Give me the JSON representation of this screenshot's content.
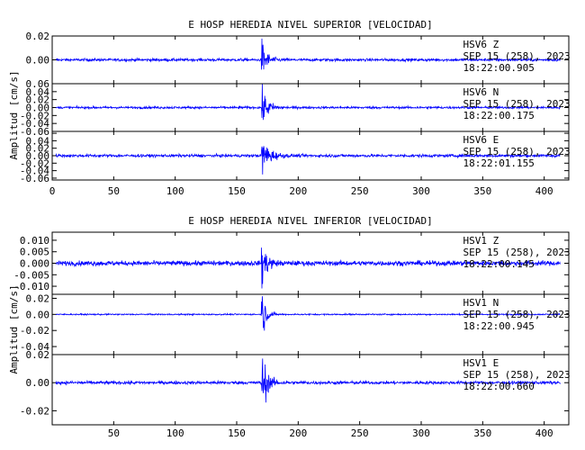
{
  "chart_data": [
    {
      "type": "line",
      "title": "E HOSP HEREDIA NIVEL SUPERIOR [VELOCIDAD]",
      "ylabel": "Amplitud [cm/s]",
      "xlabel": "",
      "xlim": [
        0,
        420
      ],
      "x_ticks": [
        0,
        50,
        100,
        150,
        200,
        250,
        300,
        350,
        400
      ],
      "color": "#0000ff",
      "event_time": 170,
      "panels": [
        {
          "station": "HSV6",
          "channel": "Z",
          "label": "HSV6  Z",
          "date": "SEP 15 (258), 2023",
          "time": "18:22:00.905",
          "ylim": [
            -0.02,
            0.02
          ],
          "y_ticks": [
            -0.02,
            0.0,
            0.02
          ],
          "y_tick_labels": [
            "",
            "0.00",
            "0.02"
          ],
          "noise_amp": 0.0012,
          "peak_amp": 0.02,
          "decay": 4
        },
        {
          "station": "HSV6",
          "channel": "N",
          "label": "HSV6  N",
          "date": "SEP 15 (258), 2023",
          "time": "18:22:00.175",
          "ylim": [
            -0.06,
            0.06
          ],
          "y_ticks": [
            -0.06,
            -0.04,
            -0.02,
            0.0,
            0.02,
            0.04,
            0.06
          ],
          "y_tick_labels": [
            "-0.06",
            "-0.04",
            "-0.02",
            "0.00",
            "0.02",
            "0.04",
            "0.06"
          ],
          "noise_amp": 0.003,
          "peak_amp": 0.055,
          "decay": 5
        },
        {
          "station": "HSV6",
          "channel": "E",
          "label": "HSV6  E",
          "date": "SEP 15 (258), 2023",
          "time": "18:22:01.155",
          "ylim": [
            -0.065,
            0.065
          ],
          "y_ticks": [
            -0.06,
            -0.04,
            -0.02,
            0.0,
            0.02,
            0.04,
            0.06
          ],
          "y_tick_labels": [
            "-0.06",
            "-0.04",
            "-0.02",
            "0.00",
            "0.02",
            "0.04",
            ""
          ],
          "noise_amp": 0.004,
          "peak_amp": 0.06,
          "decay": 6
        }
      ],
      "x_tick_labels": [
        "0",
        "50",
        "100",
        "150",
        "200",
        "250",
        "300",
        "350",
        "400"
      ]
    },
    {
      "type": "line",
      "title": "E HOSP HEREDIA NIVEL INFERIOR [VELOCIDAD]",
      "ylabel": "Amplitud [cm/s]",
      "xlabel": "",
      "xlim": [
        0,
        420
      ],
      "x_ticks": [
        0,
        50,
        100,
        150,
        200,
        250,
        300,
        350,
        400
      ],
      "color": "#0000ff",
      "event_time": 170,
      "panels": [
        {
          "station": "HSV1",
          "channel": "Z",
          "label": "HSV1  Z",
          "date": "SEP 15 (258), 2023",
          "time": "18:22:00.145",
          "ylim": [
            -0.0135,
            0.0135
          ],
          "y_ticks": [
            -0.01,
            -0.005,
            0.0,
            0.005,
            0.01
          ],
          "y_tick_labels": [
            "-0.010",
            "-0.005",
            "0.000",
            "0.005",
            "0.010"
          ],
          "noise_amp": 0.0011,
          "peak_amp": 0.0125,
          "decay": 4
        },
        {
          "station": "HSV1",
          "channel": "N",
          "label": "HSV1  N",
          "date": "SEP 15 (258), 2023",
          "time": "18:22:00.945",
          "ylim": [
            -0.05,
            0.025
          ],
          "y_ticks": [
            -0.04,
            -0.02,
            0.0,
            0.02
          ],
          "y_tick_labels": [
            "-0.04",
            "-0.02",
            "0.00",
            "0.02"
          ],
          "noise_amp": 0.0009,
          "peak_amp": 0.045,
          "decay": 3
        },
        {
          "station": "HSV1",
          "channel": "E",
          "label": "HSV1  E",
          "date": "SEP 15 (258), 2023",
          "time": "18:22:00.660",
          "ylim": [
            -0.03,
            0.02
          ],
          "y_ticks": [
            -0.02,
            0.0,
            0.02
          ],
          "y_tick_labels": [
            "-0.02",
            "0.00",
            "0.02"
          ],
          "noise_amp": 0.0012,
          "peak_amp": 0.028,
          "decay": 4
        }
      ],
      "x_tick_labels": [
        "",
        "50",
        "100",
        "150",
        "200",
        "250",
        "300",
        "350",
        "400"
      ]
    }
  ]
}
